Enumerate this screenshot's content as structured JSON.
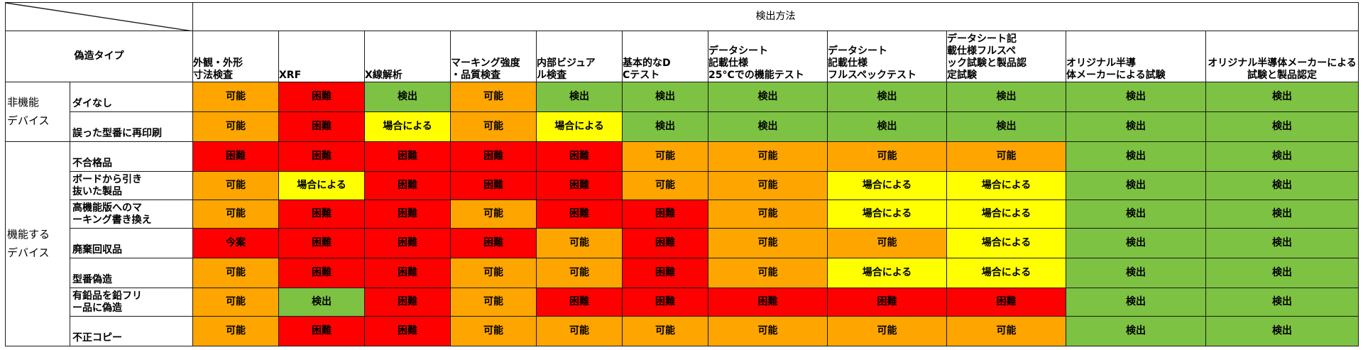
{
  "header": {
    "method_title": "検出方法",
    "forgery_type_label": "偽造タイプ",
    "columns": [
      "外観・外形寸法検査",
      "XRF",
      "X線解析",
      "マーキング強度・品質検査",
      "内部ビジュアル検査",
      "基本的なDCテスト",
      "データシート記載仕様25°Cでの機能テスト",
      "データシート記載仕様フルスペックテスト",
      "データシート記載仕様フルスペック試験と製品認定試験",
      "オリジナル半導体メーカーによる試験",
      "オリジナル半導体メーカーによる試験と製品認定"
    ]
  },
  "groups": [
    {
      "label": "非機能デバイス",
      "line1": "非機能",
      "line2": "デバイス"
    },
    {
      "label": "機能するデバイス",
      "line1": "機能する",
      "line2": "デバイス"
    }
  ],
  "status_colors": {
    "可能": "#ffa500",
    "困難": "#ff0000",
    "検出": "#7dc242",
    "場合による": "#ffff00",
    "今案": "#ff0000"
  },
  "rows": [
    {
      "label": "ダイなし",
      "cells": [
        "可能",
        "困難",
        "検出",
        "可能",
        "検出",
        "検出",
        "検出",
        "検出",
        "検出",
        "検出",
        "検出"
      ]
    },
    {
      "label": "誤った型番に再印刷",
      "cells": [
        "可能",
        "困難",
        "場合による",
        "可能",
        "場合による",
        "検出",
        "検出",
        "検出",
        "検出",
        "検出",
        "検出"
      ]
    },
    {
      "label": "不合格品",
      "cells": [
        "困難",
        "困難",
        "困難",
        "困難",
        "困難",
        "可能",
        "可能",
        "可能",
        "可能",
        "検出",
        "検出"
      ]
    },
    {
      "label": "ボードから引き抜いた製品",
      "cells": [
        "可能",
        "場合による",
        "困難",
        "困難",
        "困難",
        "可能",
        "可能",
        "場合による",
        "場合による",
        "検出",
        "検出"
      ]
    },
    {
      "label": "高機能版へのマーキング書き換え",
      "cells": [
        "可能",
        "困難",
        "困難",
        "可能",
        "困難",
        "困難",
        "可能",
        "場合による",
        "場合による",
        "検出",
        "検出"
      ]
    },
    {
      "label": "廃棄回収品",
      "cells": [
        "今案",
        "困難",
        "困難",
        "困難",
        "可能",
        "困難",
        "可能",
        "可能",
        "場合による",
        "検出",
        "検出"
      ]
    },
    {
      "label": "型番偽造",
      "cells": [
        "可能",
        "困難",
        "困難",
        "可能",
        "可能",
        "困難",
        "可能",
        "場合による",
        "場合による",
        "検出",
        "検出"
      ]
    },
    {
      "label": "有鉛品を鉛フリー品に偽造",
      "cells": [
        "可能",
        "検出",
        "困難",
        "可能",
        "困難",
        "困難",
        "困難",
        "困難",
        "困難",
        "検出",
        "検出"
      ]
    },
    {
      "label": "不正コピー",
      "cells": [
        "可能",
        "困難",
        "困難",
        "可能",
        "可能",
        "可能",
        "可能",
        "可能",
        "可能",
        "検出",
        "検出"
      ]
    }
  ]
}
